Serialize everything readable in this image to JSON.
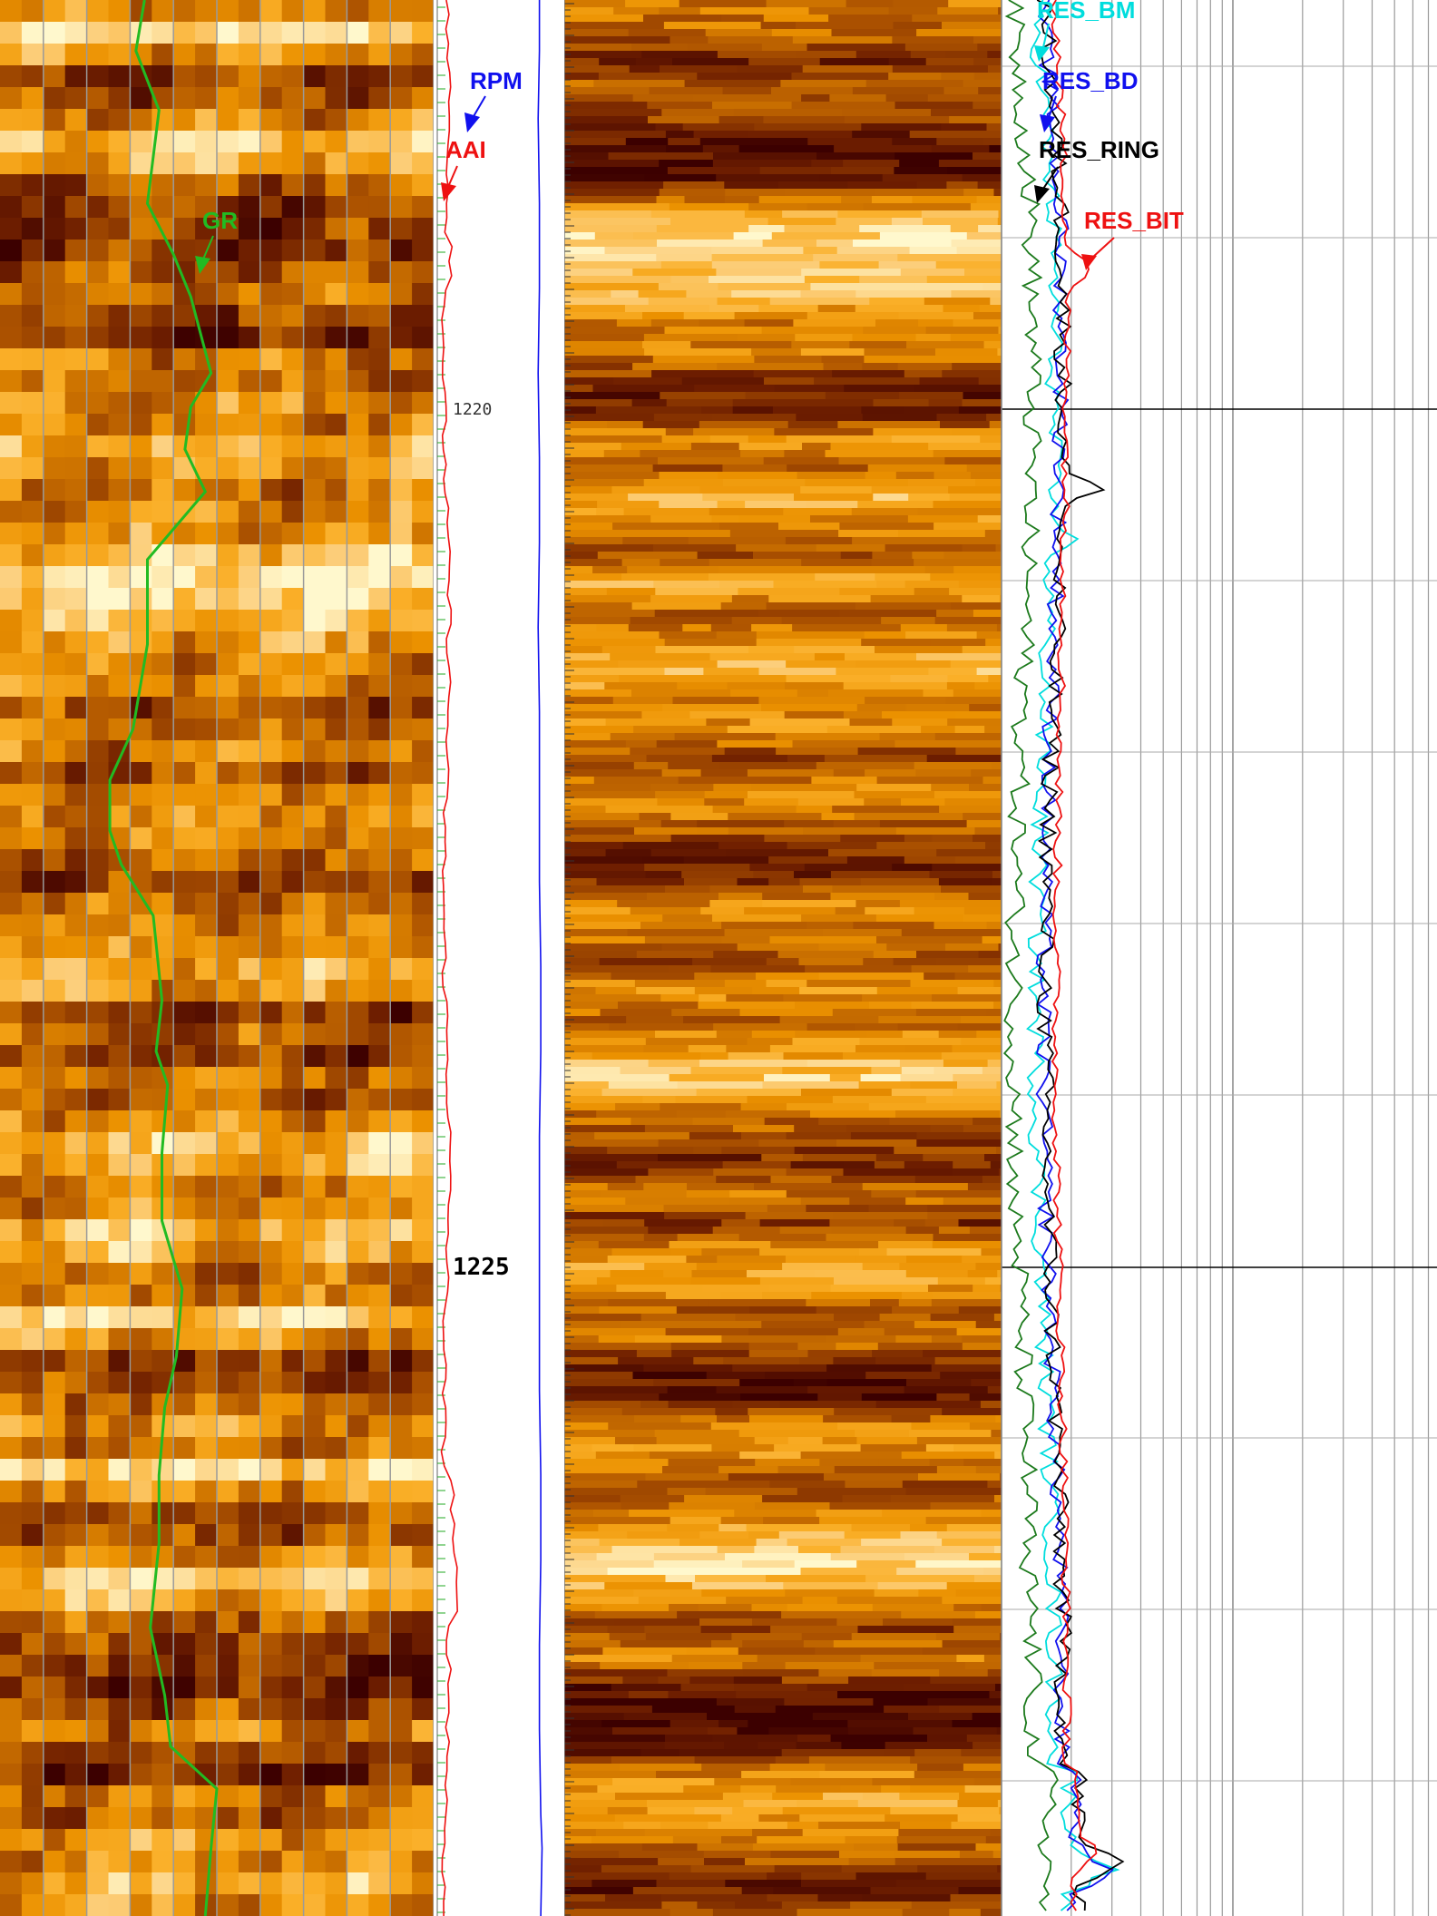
{
  "chart_data": {
    "type": "line",
    "depth_range": [
      1217.7,
      1229.0
    ],
    "depth_labels": [
      "1220",
      "1225"
    ],
    "tracks": [
      {
        "name": "gamma-image-track",
        "curves": [
          {
            "name": "GR",
            "color": "#22bb22",
            "points": [
              [
                1217.7,
                50
              ],
              [
                1218.0,
                47
              ],
              [
                1218.35,
                55
              ],
              [
                1218.9,
                51
              ],
              [
                1219.2,
                60
              ],
              [
                1219.45,
                66
              ],
              [
                1219.9,
                73
              ],
              [
                1220.1,
                66
              ],
              [
                1220.35,
                64
              ],
              [
                1220.6,
                71
              ],
              [
                1221.0,
                51
              ],
              [
                1221.5,
                51
              ],
              [
                1222.0,
                46
              ],
              [
                1222.3,
                38
              ],
              [
                1222.6,
                38
              ],
              [
                1222.8,
                42
              ],
              [
                1223.1,
                53
              ],
              [
                1223.6,
                56
              ],
              [
                1223.9,
                54
              ],
              [
                1224.1,
                58
              ],
              [
                1224.5,
                56
              ],
              [
                1224.9,
                56
              ],
              [
                1225.3,
                63
              ],
              [
                1225.7,
                61
              ],
              [
                1226.0,
                57
              ],
              [
                1226.4,
                55
              ],
              [
                1226.8,
                55
              ],
              [
                1227.3,
                52
              ],
              [
                1227.7,
                57
              ],
              [
                1228.0,
                59
              ],
              [
                1228.25,
                75
              ],
              [
                1228.6,
                73
              ],
              [
                1229.0,
                71
              ]
            ]
          }
        ]
      },
      {
        "name": "rpm-aai-track",
        "curves": [
          {
            "name": "RPM",
            "color": "#1010ee",
            "points": [
              [
                1217.7,
                81
              ],
              [
                1218.0,
                81
              ],
              [
                1218.4,
                80
              ],
              [
                1218.9,
                81
              ],
              [
                1219.4,
                81
              ],
              [
                1219.9,
                80
              ],
              [
                1220.4,
                81
              ],
              [
                1220.9,
                81
              ],
              [
                1221.4,
                80
              ],
              [
                1221.9,
                81
              ],
              [
                1222.4,
                81
              ],
              [
                1222.9,
                81
              ],
              [
                1223.4,
                82
              ],
              [
                1223.9,
                82
              ],
              [
                1224.4,
                81
              ],
              [
                1224.9,
                81
              ],
              [
                1225.4,
                81
              ],
              [
                1225.9,
                81
              ],
              [
                1226.4,
                82
              ],
              [
                1226.9,
                82
              ],
              [
                1227.4,
                81
              ],
              [
                1227.9,
                81
              ],
              [
                1228.4,
                82
              ],
              [
                1228.6,
                83
              ],
              [
                1229.0,
                82
              ]
            ]
          }
        ]
      }
    ]
  },
  "labels": {
    "gr": "GR",
    "rpm": "RPM",
    "aai": "AAI",
    "res_bm": "RES_BM",
    "res_bd": "RES_BD",
    "res_ring": "RES_RING",
    "res_bit": "RES_BIT",
    "depth_small": "1220",
    "depth_big": "1225"
  },
  "colors": {
    "gr": "#22bb22",
    "rpm": "#1010ee",
    "aai": "#ee1111",
    "res_bm": "#00dddd",
    "res_bd": "#1010ee",
    "res_ring": "#000000",
    "res_bit": "#ee1111",
    "deep": "#1c7a1c"
  }
}
